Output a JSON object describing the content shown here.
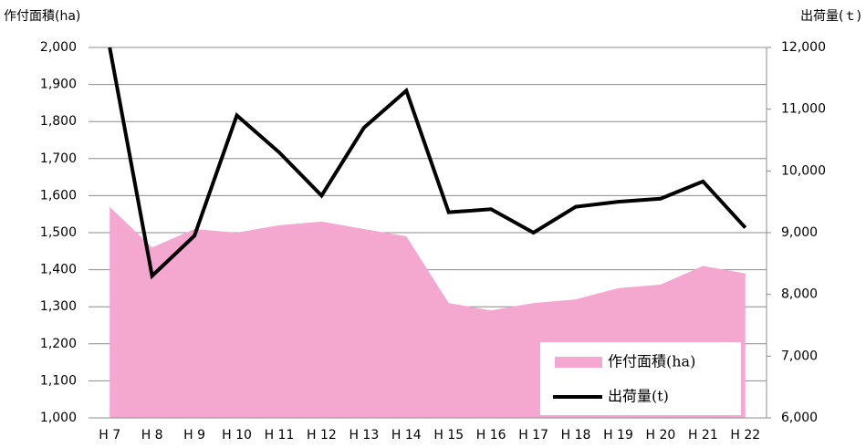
{
  "chart_data": {
    "type": "area-line",
    "y_label": "作付面積(ha)",
    "y2_label": "出荷量(ｔ)",
    "categories": [
      "H 7",
      "H 8",
      "H 9",
      "H 10",
      "H 11",
      "H 12",
      "H 13",
      "H 14",
      "H 15",
      "H 16",
      "H 17",
      "H 18",
      "H 19",
      "H 20",
      "H 21",
      "H 22"
    ],
    "series": [
      {
        "name": "作付面積(ha)",
        "kind": "area",
        "color": "#f4a7cf",
        "values": [
          1570,
          1460,
          1510,
          1500,
          1520,
          1530,
          1510,
          1490,
          1310,
          1290,
          1310,
          1320,
          1350,
          1360,
          1410,
          1390
        ]
      },
      {
        "name": "出荷量(t)",
        "kind": "line",
        "axis": "y2",
        "color": "#000000",
        "values": [
          12000,
          8300,
          8950,
          10900,
          10300,
          9600,
          10700,
          11300,
          9330,
          9380,
          9000,
          9420,
          9500,
          9550,
          9830,
          9080
        ]
      }
    ],
    "ylim": [
      1000,
      2000
    ],
    "yticks": [
      {
        "value": 1000,
        "label": "1,000"
      },
      {
        "value": 1100,
        "label": "1,100"
      },
      {
        "value": 1200,
        "label": "1,200"
      },
      {
        "value": 1300,
        "label": "1,300"
      },
      {
        "value": 1400,
        "label": "1,400"
      },
      {
        "value": 1500,
        "label": "1,500"
      },
      {
        "value": 1600,
        "label": "1,600"
      },
      {
        "value": 1700,
        "label": "1,700"
      },
      {
        "value": 1800,
        "label": "1,800"
      },
      {
        "value": 1900,
        "label": "1,900"
      },
      {
        "value": 2000,
        "label": "2,000"
      }
    ],
    "y2lim": [
      6000,
      12000
    ],
    "y2ticks": [
      {
        "value": 6000,
        "label": "6,000"
      },
      {
        "value": 7000,
        "label": "7,000"
      },
      {
        "value": 8000,
        "label": "8,000"
      },
      {
        "value": 9000,
        "label": "9,000"
      },
      {
        "value": 10000,
        "label": "10,000"
      },
      {
        "value": 11000,
        "label": "11,000"
      },
      {
        "value": 12000,
        "label": "12,000"
      }
    ],
    "grid": true,
    "legend": "lower right"
  }
}
